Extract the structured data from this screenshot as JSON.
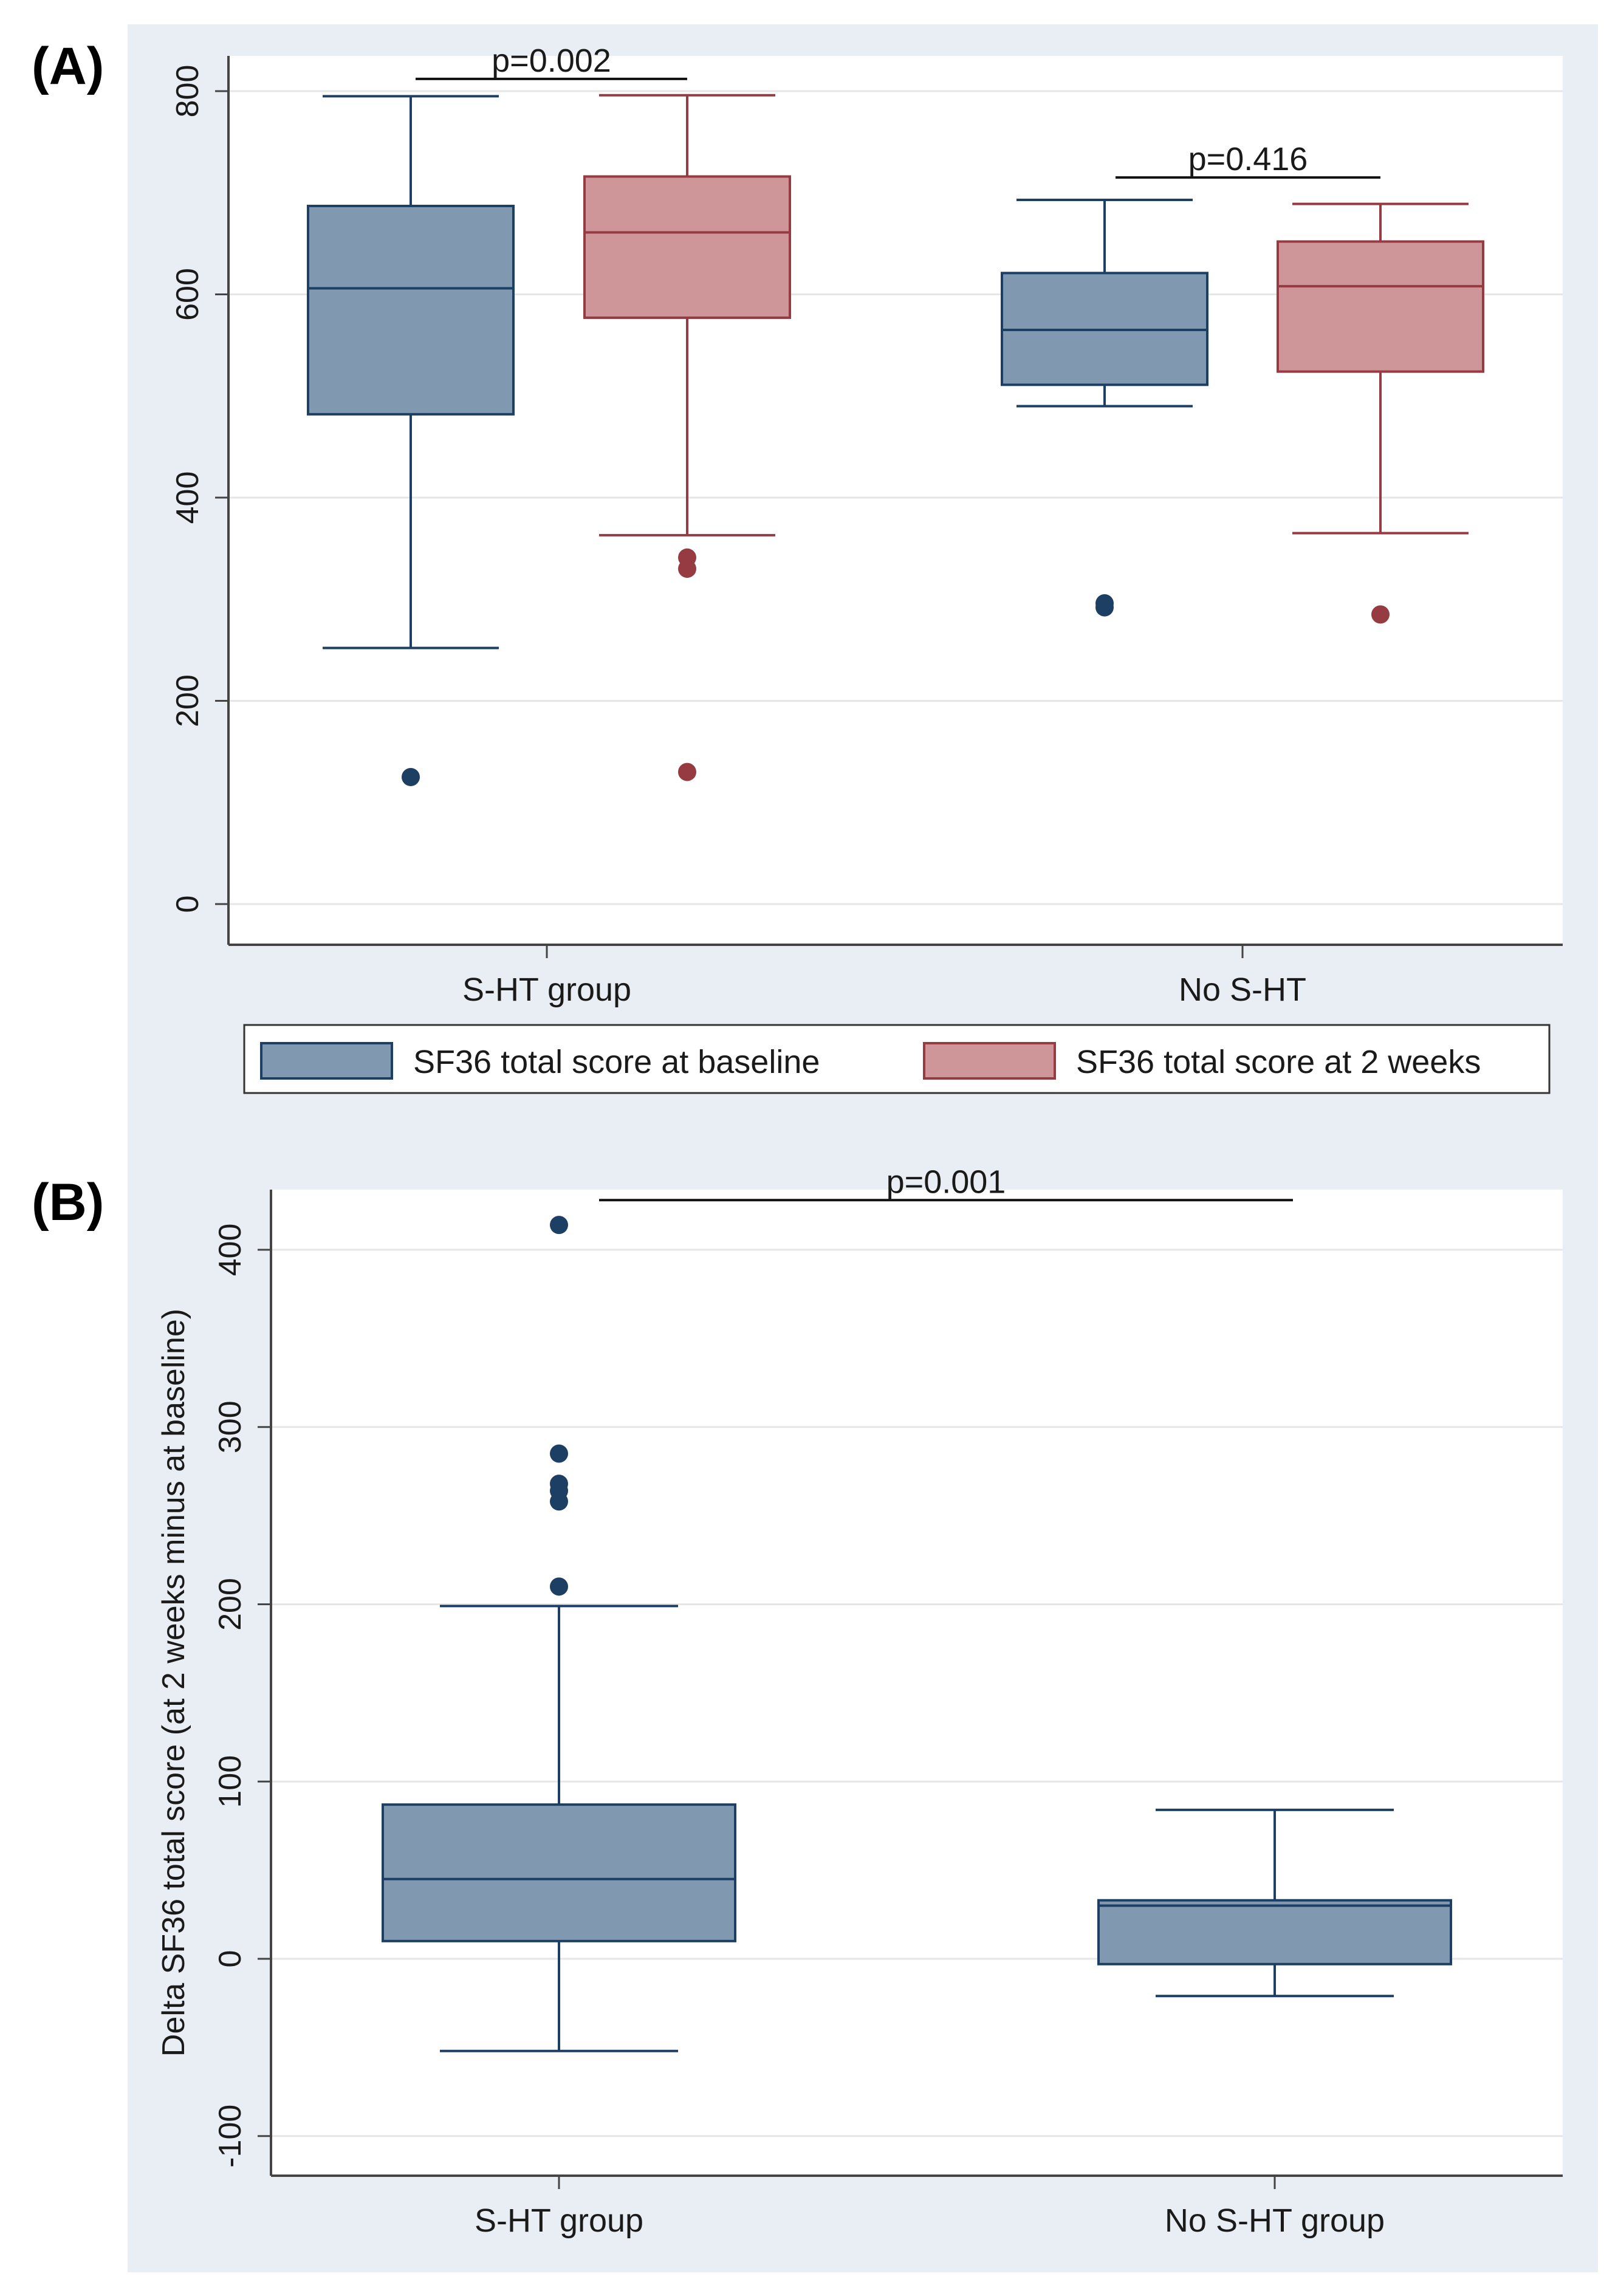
{
  "panels": {
    "a_label": "(A)",
    "b_label": "(B)"
  },
  "colors": {
    "baseline_fill": "#8099b1",
    "baseline_line": "#1d3f63",
    "weeks_fill": "#cf969a",
    "weeks_line": "#963b42",
    "plot_bg": "#ffffff",
    "figure_bg": "#e8eef3"
  },
  "chart_data": [
    {
      "panel": "A",
      "type": "box",
      "title": "",
      "xlabel": "",
      "ylabel": "",
      "ylim": [
        0,
        830
      ],
      "yticks": [
        0,
        200,
        400,
        600,
        800
      ],
      "grid": true,
      "categories": [
        "S-HT group",
        "No S-HT"
      ],
      "legend": {
        "position": "bottom",
        "entries": [
          "SF36 total score at baseline",
          "SF36 total score at 2 weeks"
        ]
      },
      "series": [
        {
          "name": "SF36 total score at baseline",
          "boxes": [
            {
              "category": "S-HT group",
              "whisker_low": 252,
              "q1": 482,
              "median": 606,
              "q3": 687,
              "whisker_high": 795,
              "outliers": [
                125
              ]
            },
            {
              "category": "No S-HT",
              "whisker_low": 490,
              "q1": 511,
              "median": 565,
              "q3": 621,
              "whisker_high": 693,
              "outliers": [
                292,
                296
              ]
            }
          ]
        },
        {
          "name": "SF36 total score at 2 weeks",
          "boxes": [
            {
              "category": "S-HT group",
              "whisker_low": 363,
              "q1": 577,
              "median": 661,
              "q3": 716,
              "whisker_high": 796,
              "outliers": [
                341,
                330,
                130
              ]
            },
            {
              "category": "No S-HT",
              "whisker_low": 365,
              "q1": 524,
              "median": 608,
              "q3": 652,
              "whisker_high": 689,
              "outliers": [
                285
              ]
            }
          ]
        }
      ],
      "annotations": [
        {
          "text": "p=0.002",
          "category": "S-HT group",
          "y": 812
        },
        {
          "text": "p=0.416",
          "category": "No S-HT",
          "y": 715
        }
      ]
    },
    {
      "panel": "B",
      "type": "box",
      "title": "",
      "xlabel": "",
      "ylabel": "Delta SF36 total score (at 2 weeks minus at baseline)",
      "ylim": [
        -120,
        435
      ],
      "yticks": [
        -100,
        0,
        100,
        200,
        300,
        400
      ],
      "grid": true,
      "categories": [
        "S-HT group",
        "No S-HT group"
      ],
      "series": [
        {
          "name": "",
          "boxes": [
            {
              "category": "S-HT group",
              "whisker_low": -52,
              "q1": 10,
              "median": 45,
              "q3": 87,
              "whisker_high": 199,
              "outliers": [
                414,
                285,
                268,
                264,
                258,
                210
              ]
            },
            {
              "category": "No S-HT group",
              "whisker_low": -21,
              "q1": -3,
              "median": 30,
              "q3": 33,
              "whisker_high": 84,
              "outliers": []
            }
          ]
        }
      ],
      "annotations": [
        {
          "text": "p=0.001",
          "y": 428
        }
      ]
    }
  ]
}
